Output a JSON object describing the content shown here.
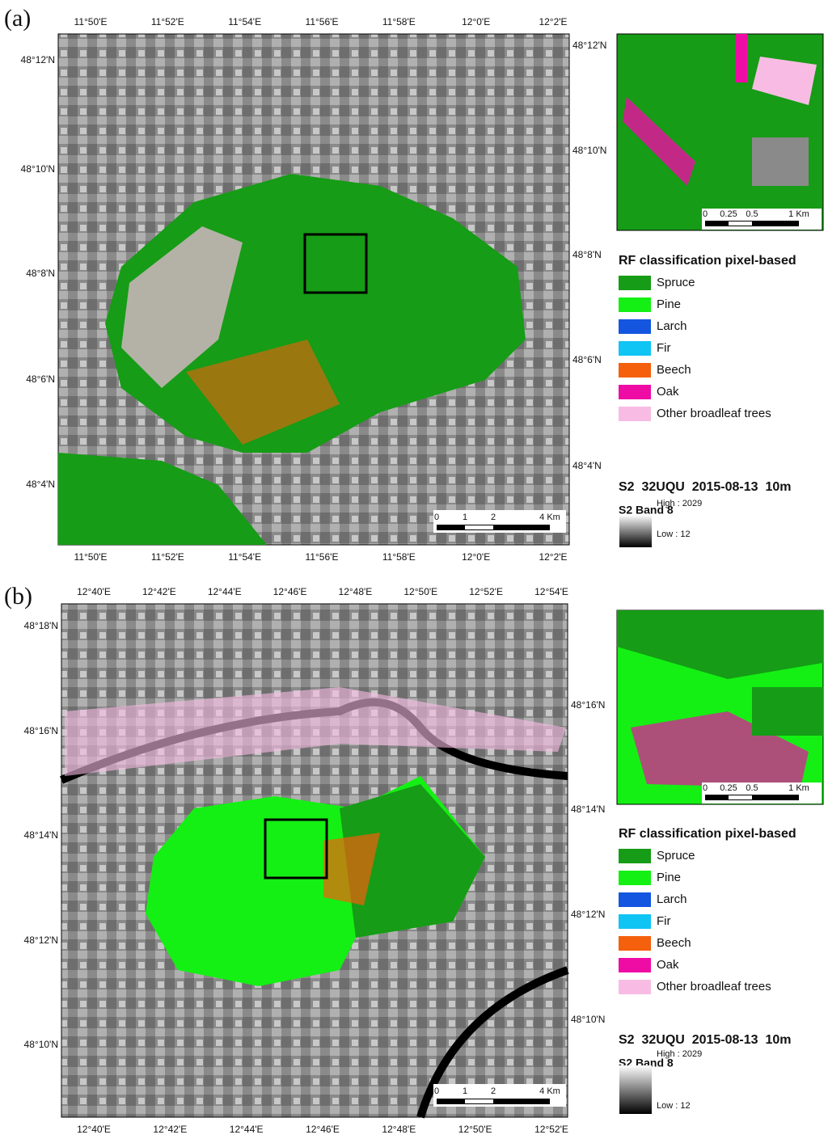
{
  "panels": [
    {
      "label": "(a)",
      "top_ticks": [
        "11°50'E",
        "11°52'E",
        "11°54'E",
        "11°56'E",
        "11°58'E",
        "12°0'E",
        "12°2'E"
      ],
      "bottom_ticks": [
        "11°50'E",
        "11°52'E",
        "11°54'E",
        "11°56'E",
        "11°58'E",
        "12°0'E",
        "12°2'E"
      ],
      "left_ticks": [
        "48°12'N",
        "48°10'N",
        "48°8'N",
        "48°6'N",
        "48°4'N"
      ],
      "right_ticks": [
        "48°12'N",
        "48°10'N",
        "48°8'N",
        "48°6'N",
        "48°4'N"
      ],
      "scale_bar": [
        "0",
        "1",
        "2",
        "4 Km"
      ],
      "inset_scale_bar": [
        "0",
        "0.25",
        "0.5",
        "1 Km"
      ],
      "legend": {
        "title": "RF classification pixel-based",
        "items": [
          {
            "label": "Spruce",
            "color": "#169c16"
          },
          {
            "label": "Pine",
            "color": "#14f014"
          },
          {
            "label": "Larch",
            "color": "#1456e0"
          },
          {
            "label": "Fir",
            "color": "#10c4f4"
          },
          {
            "label": "Beech",
            "color": "#f4600c"
          },
          {
            "label": "Oak",
            "color": "#ee0ca4"
          },
          {
            "label": "Other broadleaf trees",
            "color": "#f8bce4"
          }
        ]
      },
      "image_title": "S2  32UQU  2015-08-13  10m",
      "band": {
        "title": "S2 Band 8",
        "high": "High : 2029",
        "low": "Low : 12"
      }
    },
    {
      "label": "(b)",
      "top_ticks": [
        "12°40'E",
        "12°42'E",
        "12°44'E",
        "12°46'E",
        "12°48'E",
        "12°50'E",
        "12°52'E",
        "12°54'E"
      ],
      "bottom_ticks": [
        "12°40'E",
        "12°42'E",
        "12°44'E",
        "12°46'E",
        "12°48'E",
        "12°50'E",
        "12°52'E"
      ],
      "left_ticks": [
        "48°18'N",
        "48°16'N",
        "48°14'N",
        "48°12'N",
        "48°10'N"
      ],
      "right_ticks": [
        "48°16'N",
        "48°14'N",
        "48°12'N",
        "48°10'N"
      ],
      "scale_bar": [
        "0",
        "1",
        "2",
        "4 Km"
      ],
      "inset_scale_bar": [
        "0",
        "0.25",
        "0.5",
        "1 Km"
      ],
      "legend": {
        "title": "RF classification pixel-based",
        "items": [
          {
            "label": "Spruce",
            "color": "#169c16"
          },
          {
            "label": "Pine",
            "color": "#14f014"
          },
          {
            "label": "Larch",
            "color": "#1456e0"
          },
          {
            "label": "Fir",
            "color": "#10c4f4"
          },
          {
            "label": "Beech",
            "color": "#f4600c"
          },
          {
            "label": "Oak",
            "color": "#ee0ca4"
          },
          {
            "label": "Other broadleaf trees",
            "color": "#f8bce4"
          }
        ]
      },
      "image_title": "S2  32UQU  2015-08-13  10m",
      "band": {
        "title": "S2 Band 8",
        "high": "High : 2029",
        "low": "Low : 12"
      }
    }
  ]
}
